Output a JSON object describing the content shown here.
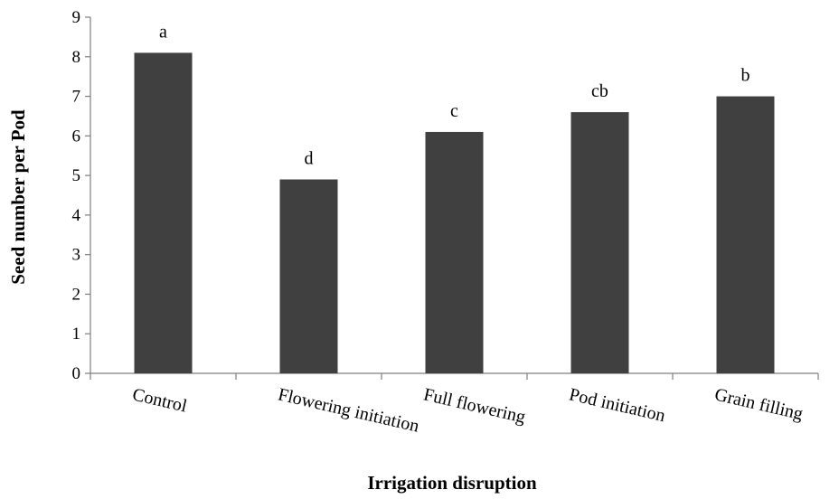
{
  "chart_data": {
    "type": "bar",
    "title": "",
    "xlabel": "Irrigation disruption",
    "ylabel": "Seed number per Pod",
    "ylim": [
      0,
      9
    ],
    "yticks": [
      0,
      1,
      2,
      3,
      4,
      5,
      6,
      7,
      8,
      9
    ],
    "categories": [
      "Control",
      "Flowering initiation",
      "Full flowering",
      "Pod initiation",
      "Grain filling"
    ],
    "values": [
      8.1,
      4.9,
      6.1,
      6.6,
      7.0
    ],
    "significance_letters": [
      "a",
      "d",
      "c",
      "cb",
      "b"
    ],
    "bar_color": "#404040",
    "grid": false,
    "legend": "none"
  }
}
